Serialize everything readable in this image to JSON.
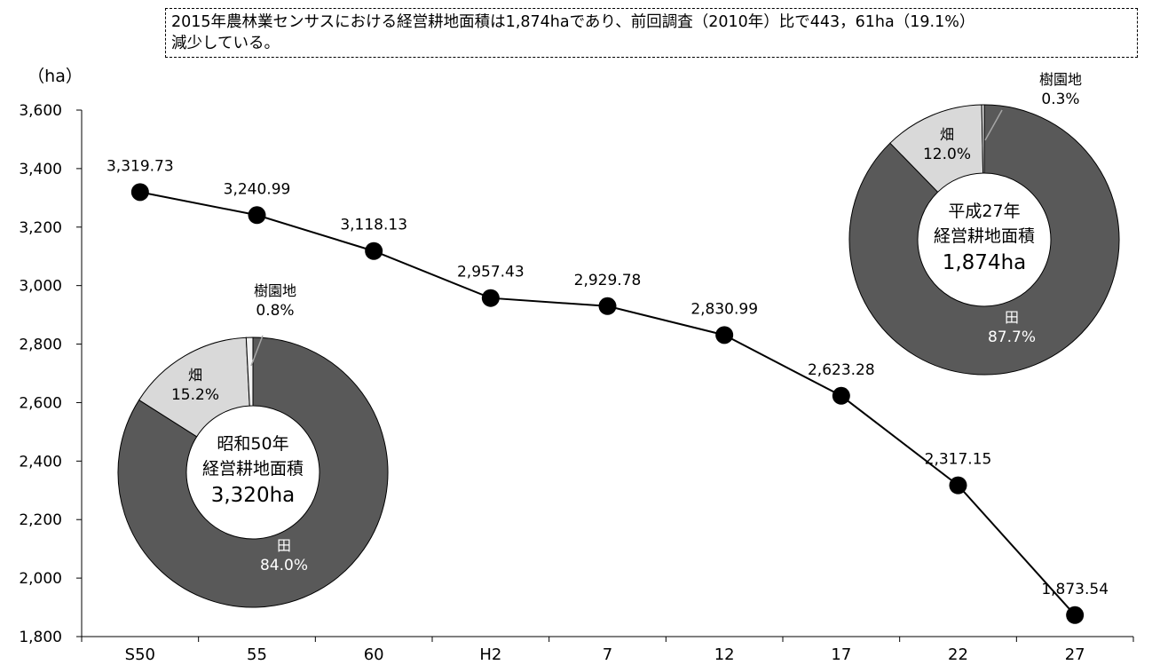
{
  "note": {
    "line1": "2015年農林業センサスにおける経営耕地面積は1,874haであり、前回調査（2010年）比で443，61ha（19.1%）",
    "line2": "減少している。"
  },
  "chart_data": [
    {
      "type": "line",
      "unit_label": "（ha）",
      "categories": [
        "S50",
        "55",
        "60",
        "H2",
        "7",
        "12",
        "17",
        "22",
        "27"
      ],
      "values": [
        3319.73,
        3240.99,
        3118.13,
        2957.43,
        2929.78,
        2830.99,
        2623.28,
        2317.15,
        1873.54
      ],
      "data_labels": [
        "3,319.73",
        "3,240.99",
        "3,118.13",
        "2,957.43",
        "2,929.78",
        "2,830.99",
        "2,623.28",
        "2,317.15",
        "1,873.54"
      ],
      "ylim": [
        1800,
        3600
      ],
      "yticks": [
        1800,
        2000,
        2200,
        2400,
        2600,
        2800,
        3000,
        3200,
        3400,
        3600
      ],
      "ytick_labels": [
        "1,800",
        "2,000",
        "2,200",
        "2,400",
        "2,600",
        "2,800",
        "3,000",
        "3,200",
        "3,400",
        "3,600"
      ],
      "grid": false,
      "colors": {
        "line": "#000000",
        "marker": "#000000"
      }
    },
    {
      "type": "pie",
      "variant": "donut",
      "center_text": [
        "昭和50年",
        "経営耕地面積",
        "3,320ha"
      ],
      "slices": [
        {
          "name": "田",
          "label": "84.0%",
          "value": 84.0,
          "color": "#595959"
        },
        {
          "name": "畑",
          "label": "15.2%",
          "value": 15.2,
          "color": "#d9d9d9"
        },
        {
          "name": "樹園地",
          "label": "0.8%",
          "value": 0.8,
          "color": "#f2f2f2"
        }
      ]
    },
    {
      "type": "pie",
      "variant": "donut",
      "center_text": [
        "平成27年",
        "経営耕地面積",
        "1,874ha"
      ],
      "slices": [
        {
          "name": "田",
          "label": "87.7%",
          "value": 87.7,
          "color": "#595959"
        },
        {
          "name": "畑",
          "label": "12.0%",
          "value": 12.0,
          "color": "#d9d9d9"
        },
        {
          "name": "樹園地",
          "label": "0.3%",
          "value": 0.3,
          "color": "#f2f2f2"
        }
      ]
    }
  ]
}
